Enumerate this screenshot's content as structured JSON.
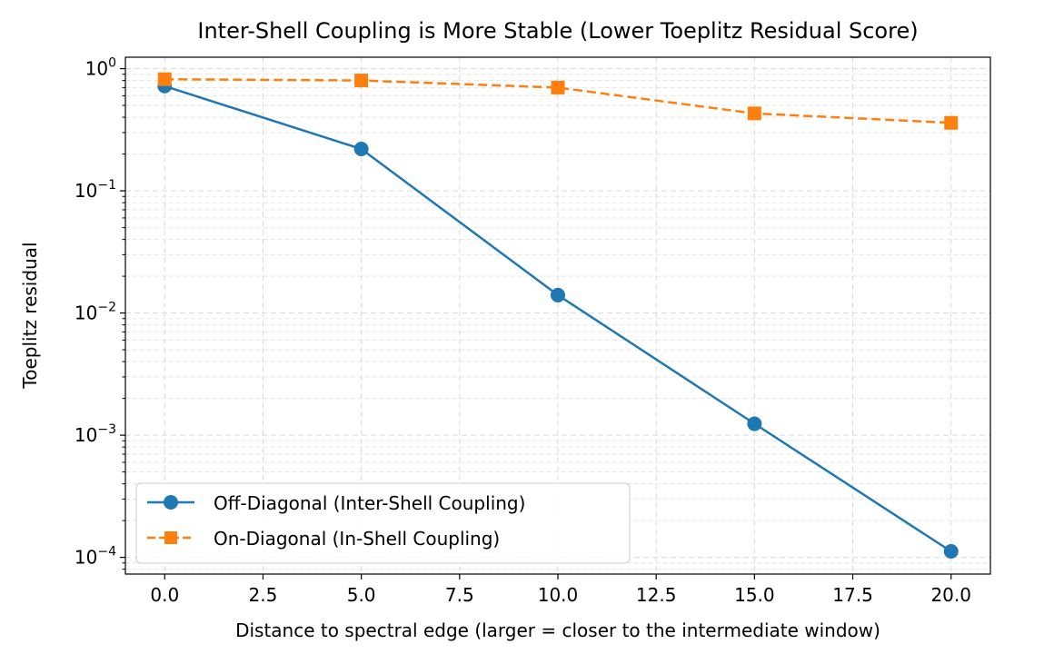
{
  "chart_data": {
    "type": "line",
    "title": "Inter-Shell Coupling is More Stable (Lower Toeplitz Residual Score)",
    "xlabel": "Distance to spectral edge (larger = closer to the intermediate window)",
    "ylabel": "Toeplitz residual",
    "yscale": "log",
    "xlim": [
      -1.0,
      21.0
    ],
    "ylim": [
      7.3e-05,
      1.24
    ],
    "grid": true,
    "legend_position": "lower-left",
    "x_ticks": [
      0.0,
      2.5,
      5.0,
      7.5,
      10.0,
      12.5,
      15.0,
      17.5,
      20.0
    ],
    "x_tick_labels": [
      "0.0",
      "2.5",
      "5.0",
      "7.5",
      "10.0",
      "12.5",
      "15.0",
      "17.5",
      "20.0"
    ],
    "y_ticks": [
      {
        "value": 1,
        "base": "10",
        "exp": "0"
      },
      {
        "value": 0.1,
        "base": "10",
        "exp": "−1"
      },
      {
        "value": 0.01,
        "base": "10",
        "exp": "−2"
      },
      {
        "value": 0.001,
        "base": "10",
        "exp": "−3"
      },
      {
        "value": 0.0001,
        "base": "10",
        "exp": "−4"
      }
    ],
    "series": [
      {
        "name": "Off-Diagonal (Inter-Shell Coupling)",
        "color": "#1f77b4",
        "marker": "circle",
        "linestyle": "solid",
        "x": [
          0,
          5,
          10,
          15,
          20
        ],
        "y": [
          0.72,
          0.22,
          0.014,
          0.00124,
          0.000112
        ]
      },
      {
        "name": "On-Diagonal (In-Shell Coupling)",
        "color": "#ff7f0e",
        "marker": "square",
        "linestyle": "dashed",
        "x": [
          0,
          5,
          10,
          15,
          20
        ],
        "y": [
          0.82,
          0.8,
          0.7,
          0.43,
          0.36
        ]
      }
    ]
  }
}
